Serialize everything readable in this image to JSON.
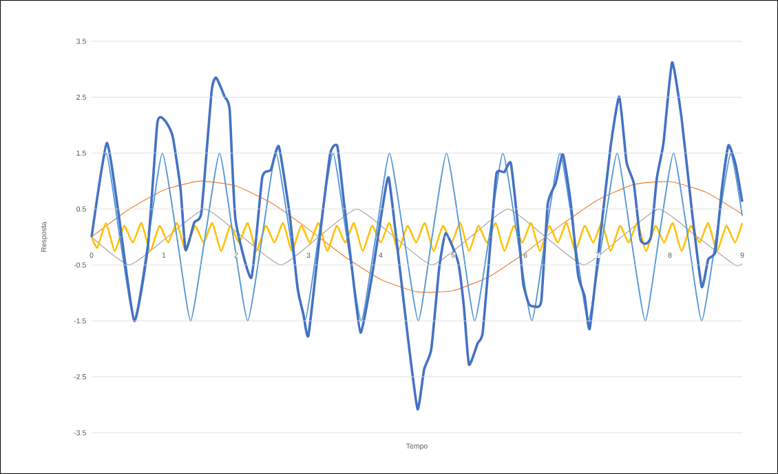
{
  "chart_data": {
    "type": "line",
    "xlabel": "Tempo",
    "ylabel": "Resposta",
    "xlim": [
      0,
      9
    ],
    "ylim": [
      -3.5,
      3.5
    ],
    "xticks": [
      0,
      1,
      2,
      3,
      4,
      5,
      6,
      7,
      8,
      9
    ],
    "yticks": [
      -3.5,
      -2.5,
      -1.5,
      -0.5,
      0.5,
      1.5,
      2.5,
      3.5
    ],
    "grid": "y",
    "legend": false,
    "marker": "none",
    "line_style": "solid",
    "series": [
      {
        "color": "#ed7d31",
        "x": [
          0,
          0.5,
          1,
          1.5,
          2,
          2.5,
          3,
          3.5,
          4,
          4.5,
          5,
          5.5,
          6,
          6.5,
          7,
          7.5,
          8,
          8.5,
          9
        ],
        "values": [
          0,
          0.48,
          0.84,
          1.0,
          0.91,
          0.6,
          0.14,
          -0.35,
          -0.76,
          -0.98,
          -0.96,
          -0.71,
          -0.28,
          0.22,
          0.66,
          0.94,
          0.99,
          0.8,
          0.41
        ]
      },
      {
        "color": "#a5a5a5",
        "x": [
          0,
          0.52,
          1.05,
          1.57,
          2.09,
          2.62,
          3.14,
          3.67,
          4.19,
          4.71,
          5.24,
          5.76,
          6.28,
          6.81,
          7.33,
          7.85,
          8.38,
          8.9,
          9
        ],
        "values": [
          0,
          -0.5,
          0,
          0.5,
          0,
          -0.5,
          0,
          0.5,
          0,
          -0.5,
          0,
          0.5,
          0,
          -0.5,
          0,
          0.5,
          0,
          -0.5,
          -0.48
        ]
      },
      {
        "color": "#ffc000",
        "x": [
          0,
          0.08,
          0.2,
          0.32,
          0.45,
          0.57,
          0.69,
          0.81,
          0.94,
          1.06,
          1.18,
          1.3,
          1.43,
          1.55,
          1.67,
          1.79,
          1.92,
          2.04,
          2.16,
          2.28,
          2.41,
          2.53,
          2.65,
          2.77,
          2.9,
          3.02,
          3.14,
          3.26,
          3.39,
          3.51,
          3.63,
          3.75,
          3.88,
          4.0,
          4.12,
          4.24,
          4.37,
          4.49,
          4.61,
          4.73,
          4.86,
          4.98,
          5.1,
          5.22,
          5.35,
          5.47,
          5.59,
          5.71,
          5.84,
          5.96,
          6.08,
          6.2,
          6.33,
          6.45,
          6.57,
          6.69,
          6.82,
          6.94,
          7.06,
          7.18,
          7.31,
          7.43,
          7.55,
          7.67,
          7.8,
          7.92,
          8.04,
          8.16,
          8.29,
          8.41,
          8.53,
          8.65,
          8.78,
          8.9,
          9
        ],
        "values": [
          0,
          -0.19,
          0.25,
          -0.25,
          0.2,
          -0.1,
          0.25,
          -0.25,
          0.2,
          -0.1,
          0.25,
          -0.25,
          0.2,
          -0.1,
          0.25,
          -0.25,
          0.2,
          -0.1,
          0.25,
          -0.25,
          0.2,
          -0.1,
          0.25,
          -0.25,
          0.2,
          -0.1,
          0.25,
          -0.25,
          0.2,
          -0.1,
          0.25,
          -0.25,
          0.2,
          -0.1,
          0.25,
          -0.25,
          0.2,
          -0.1,
          0.25,
          -0.25,
          0.2,
          -0.1,
          0.25,
          -0.25,
          0.2,
          -0.1,
          0.25,
          -0.25,
          0.2,
          -0.1,
          0.25,
          -0.25,
          0.2,
          -0.1,
          0.25,
          -0.25,
          0.2,
          -0.1,
          0.25,
          -0.25,
          0.2,
          -0.1,
          0.25,
          -0.25,
          0.2,
          -0.1,
          0.25,
          -0.25,
          0.2,
          -0.1,
          0.25,
          -0.25,
          0.2,
          -0.1,
          0.25
        ]
      },
      {
        "color": "#5b9bd5",
        "x": [
          0,
          0.2,
          0.39,
          0.59,
          0.79,
          0.98,
          1.18,
          1.37,
          1.57,
          1.77,
          1.96,
          2.16,
          2.36,
          2.55,
          2.75,
          2.95,
          3.14,
          3.34,
          3.53,
          3.73,
          3.93,
          4.12,
          4.32,
          4.52,
          4.71,
          4.91,
          5.11,
          5.3,
          5.5,
          5.69,
          5.89,
          6.09,
          6.28,
          6.48,
          6.68,
          6.87,
          7.07,
          7.27,
          7.46,
          7.66,
          7.85,
          8.05,
          8.25,
          8.44,
          8.64,
          8.84,
          9
        ],
        "values": [
          0,
          1.5,
          0,
          -1.5,
          0,
          1.5,
          0,
          -1.5,
          0,
          1.5,
          0,
          -1.5,
          0,
          1.5,
          0,
          -1.5,
          0,
          1.5,
          0,
          -1.5,
          0,
          1.5,
          0,
          -1.5,
          0,
          1.5,
          0,
          -1.5,
          0,
          1.5,
          0,
          -1.5,
          0,
          1.5,
          0,
          -1.5,
          0,
          1.5,
          0,
          -1.5,
          0,
          1.5,
          0,
          -1.5,
          0,
          1.5,
          0.38
        ]
      },
      {
        "color": "#4472c4",
        "x": [
          0,
          0.21,
          0.37,
          0.59,
          0.78,
          0.91,
          1.01,
          1.12,
          1.23,
          1.3,
          1.42,
          1.52,
          1.66,
          1.72,
          1.78,
          1.84,
          1.91,
          1.99,
          2.21,
          2.36,
          2.48,
          2.59,
          2.74,
          2.85,
          2.93,
          3.0,
          3.15,
          3.3,
          3.4,
          3.49,
          3.6,
          3.72,
          3.87,
          4.02,
          4.11,
          4.24,
          4.39,
          4.51,
          4.6,
          4.7,
          4.81,
          4.9,
          5.07,
          5.15,
          5.22,
          5.34,
          5.41,
          5.52,
          5.6,
          5.71,
          5.8,
          5.9,
          5.97,
          6.05,
          6.12,
          6.22,
          6.31,
          6.42,
          6.52,
          6.63,
          6.73,
          6.82,
          6.89,
          7.03,
          7.18,
          7.3,
          7.4,
          7.5,
          7.59,
          7.67,
          7.74,
          7.82,
          7.91,
          8.03,
          8.16,
          8.31,
          8.44,
          8.53,
          8.63,
          8.72,
          8.81,
          8.91,
          9
        ],
        "values": [
          0,
          1.68,
          0.45,
          -1.5,
          -0.16,
          2.04,
          2.09,
          1.81,
          0.87,
          -0.23,
          0.26,
          0.45,
          2.6,
          2.85,
          2.7,
          2.51,
          2.28,
          0.32,
          -0.73,
          1.06,
          1.2,
          1.62,
          0.4,
          -0.92,
          -1.38,
          -1.76,
          -0.07,
          1.48,
          1.62,
          0.63,
          -0.54,
          -1.71,
          -0.77,
          0.49,
          1.06,
          -0.3,
          -1.95,
          -3.08,
          -2.37,
          -2.0,
          -0.54,
          0.07,
          -0.45,
          -1.24,
          -2.28,
          -1.9,
          -1.71,
          -0.07,
          1.13,
          1.16,
          1.32,
          0.17,
          -0.82,
          -1.2,
          -1.24,
          -1.15,
          0.59,
          0.96,
          1.48,
          0.59,
          -0.68,
          -1.06,
          -1.64,
          -0.07,
          1.62,
          2.51,
          1.34,
          0.96,
          -0.03,
          -0.12,
          0.02,
          1.06,
          1.67,
          3.12,
          2.14,
          0.4,
          -0.89,
          -0.4,
          -0.26,
          0.87,
          1.64,
          1.29,
          0.63
        ]
      }
    ]
  }
}
